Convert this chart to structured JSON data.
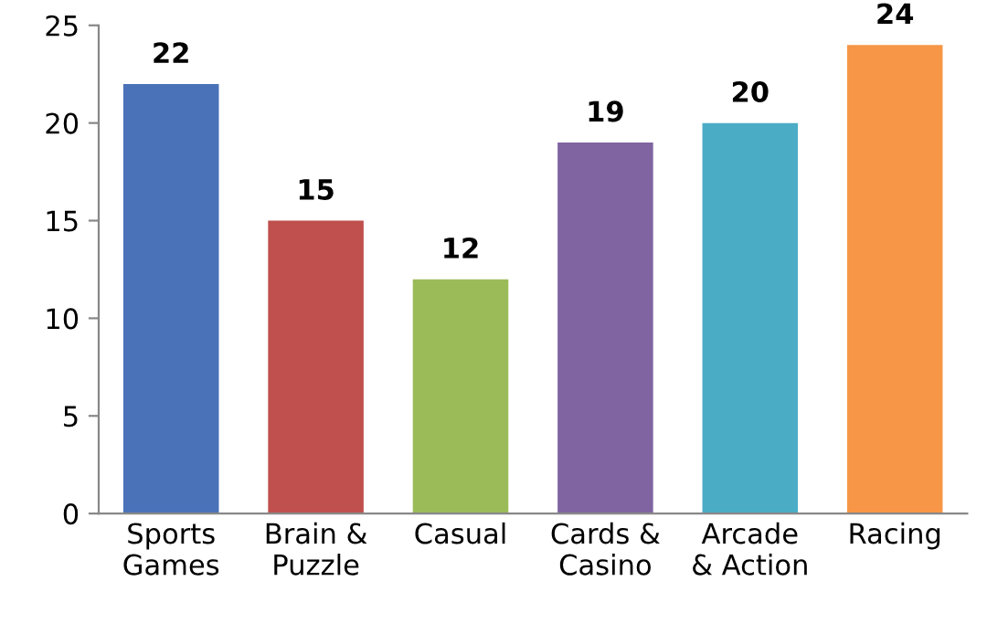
{
  "chart_data": {
    "type": "bar",
    "categories": [
      "Sports\nGames",
      "Brain &\nPuzzle",
      "Casual",
      "Cards &\nCasino",
      "Arcade\n& Action",
      "Racing"
    ],
    "values": [
      22,
      15,
      12,
      19,
      20,
      24
    ],
    "colors": [
      "#4a72b8",
      "#c0504d",
      "#9bbb59",
      "#8064a2",
      "#4bacc6",
      "#f79646"
    ],
    "ylim": [
      0,
      25
    ],
    "yticks": [
      0,
      5,
      10,
      15,
      20,
      25
    ],
    "grid": false,
    "data_labels": true
  }
}
